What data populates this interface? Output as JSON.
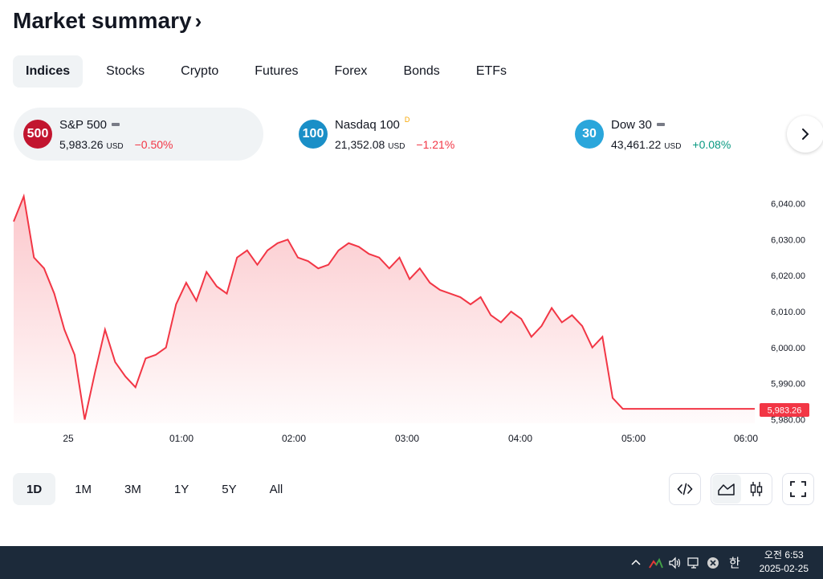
{
  "header": {
    "title": "Market summary",
    "chevron": "›"
  },
  "tabs": [
    {
      "label": "Indices",
      "active": true
    },
    {
      "label": "Stocks"
    },
    {
      "label": "Crypto"
    },
    {
      "label": "Futures"
    },
    {
      "label": "Forex"
    },
    {
      "label": "Bonds"
    },
    {
      "label": "ETFs"
    }
  ],
  "indices": [
    {
      "badge": "500",
      "badge_color": "#c2152f",
      "name": "S&P 500",
      "price": "5,983.26",
      "currency": "USD",
      "change": "−0.50%",
      "direction": "down",
      "active": true
    },
    {
      "badge": "100",
      "badge_color": "#1a8fc7",
      "name": "Nasdaq 100",
      "flag": "D",
      "price": "21,352.08",
      "currency": "USD",
      "change": "−1.21%",
      "direction": "down"
    },
    {
      "badge": "30",
      "badge_color": "#2aa6db",
      "name": "Dow 30",
      "price": "43,461.22",
      "currency": "USD",
      "change": "+0.08%",
      "direction": "up"
    }
  ],
  "chart_data": {
    "type": "area",
    "series": [
      {
        "name": "S&P 500",
        "color": "#f23645"
      }
    ],
    "x_ticks": [
      "25",
      "01:00",
      "02:00",
      "03:00",
      "04:00",
      "05:00",
      "06:00"
    ],
    "y_ticks": [
      "6,040.00",
      "6,030.00",
      "6,020.00",
      "6,010.00",
      "6,000.00",
      "5,990.00",
      "5,980.00"
    ],
    "ylim": [
      5979,
      6043
    ],
    "last_value": "5,983.26",
    "x": [
      "00:00",
      "00:05",
      "00:10",
      "00:15",
      "00:20",
      "00:25",
      "00:30",
      "00:35",
      "00:40",
      "00:45",
      "00:50",
      "00:55",
      "01:00",
      "01:05",
      "01:10",
      "01:15",
      "01:20",
      "01:25",
      "01:30",
      "01:35",
      "01:40",
      "01:45",
      "01:50",
      "01:55",
      "02:00",
      "02:05",
      "02:10",
      "02:15",
      "02:20",
      "02:25",
      "02:30",
      "02:35",
      "02:40",
      "02:45",
      "02:50",
      "02:55",
      "03:00",
      "03:05",
      "03:10",
      "03:15",
      "03:20",
      "03:25",
      "03:30",
      "03:35",
      "03:40",
      "03:45",
      "03:50",
      "03:55",
      "04:00",
      "04:05",
      "04:10",
      "04:15",
      "04:20",
      "04:25",
      "04:30",
      "04:35",
      "04:40",
      "04:45",
      "04:50",
      "04:55",
      "05:00",
      "05:05",
      "05:10",
      "05:15",
      "05:20",
      "05:25",
      "05:30",
      "05:35",
      "05:40",
      "05:45",
      "05:50",
      "05:55",
      "06:00",
      "06:05"
    ],
    "values": [
      6035,
      6042,
      6025,
      6022,
      6015,
      6005,
      5998,
      5980,
      5993,
      6005,
      5996,
      5992,
      5989,
      5997,
      5998,
      6000,
      6012,
      6018,
      6013,
      6021,
      6017,
      6015,
      6025,
      6027,
      6023,
      6027,
      6029,
      6030,
      6025,
      6024,
      6022,
      6023,
      6027,
      6029,
      6028,
      6026,
      6025,
      6022,
      6025,
      6019,
      6022,
      6018,
      6016,
      6015,
      6014,
      6012,
      6014,
      6009,
      6007,
      6010,
      6008,
      6003,
      6006,
      6011,
      6007,
      6009,
      6006,
      6000,
      6003,
      5986,
      5983,
      5983,
      5983,
      5983,
      5983,
      5983,
      5983,
      5983,
      5983,
      5983,
      5983,
      5983,
      5983,
      5983
    ]
  },
  "ranges": [
    {
      "label": "1D",
      "active": true
    },
    {
      "label": "1M"
    },
    {
      "label": "3M"
    },
    {
      "label": "1Y"
    },
    {
      "label": "5Y"
    },
    {
      "label": "All"
    }
  ],
  "taskbar": {
    "time": "오전 6:53",
    "date": "2025-02-25",
    "ime": "한"
  }
}
